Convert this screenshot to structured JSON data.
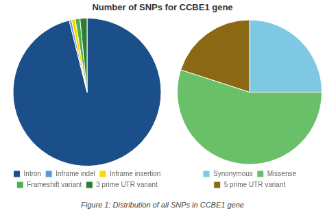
{
  "chart_data": [
    {
      "type": "pie",
      "title": "Number of SNPs for CCBE1 gene",
      "annotations": [
        "Figure 1: Distribution of all SNPs in CCBE1 gene"
      ],
      "categories": [
        "Intron",
        "Inframe indel",
        "Inframe insertion",
        "Frameshift variant",
        "3 prime UTR variant"
      ],
      "values": [
        940,
        5,
        8,
        10,
        15
      ],
      "colors": [
        "#1b4f8a",
        "#5b9bd5",
        "#ffd700",
        "#4caf50",
        "#2e7d32"
      ],
      "legend": "bottom"
    },
    {
      "type": "pie",
      "categories": [
        "Synonymous",
        "Missense",
        "5 prime UTR variant"
      ],
      "values": [
        25,
        55,
        20
      ],
      "colors": [
        "#7ec8e3",
        "#6abf69",
        "#8b6914"
      ],
      "legend": "bottom"
    }
  ]
}
